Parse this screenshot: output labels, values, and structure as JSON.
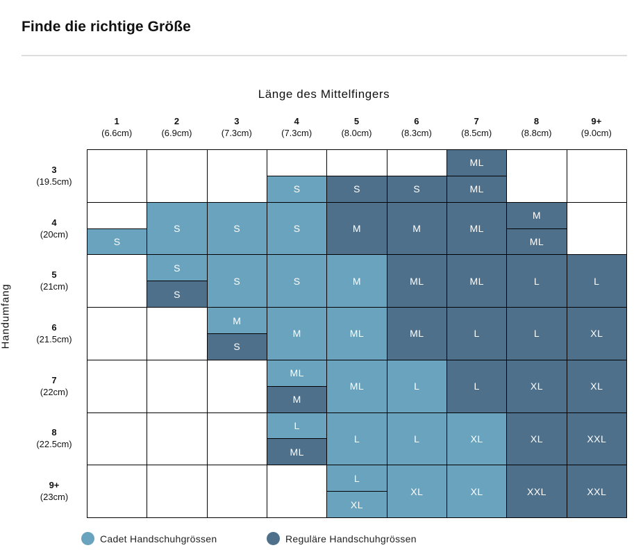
{
  "title": "Finde die richtige Größe",
  "chart_data": {
    "type": "table",
    "xlabel": "Länge des Mittelfingers",
    "ylabel": "Handumfang",
    "columns": [
      {
        "label": "1",
        "sub": "(6.6cm)"
      },
      {
        "label": "2",
        "sub": "(6.9cm)"
      },
      {
        "label": "3",
        "sub": "(7.3cm)"
      },
      {
        "label": "4",
        "sub": "(7.3cm)"
      },
      {
        "label": "5",
        "sub": "(8.0cm)"
      },
      {
        "label": "6",
        "sub": "(8.3cm)"
      },
      {
        "label": "7",
        "sub": "(8.5cm)"
      },
      {
        "label": "8",
        "sub": "(8.8cm)"
      },
      {
        "label": "9+",
        "sub": "(9.0cm)"
      }
    ],
    "rows": [
      {
        "label": "3",
        "sub": "(19.5cm)"
      },
      {
        "label": "4",
        "sub": "(20cm)"
      },
      {
        "label": "5",
        "sub": "(21cm)"
      },
      {
        "label": "6",
        "sub": "(21.5cm)"
      },
      {
        "label": "7",
        "sub": "(22cm)"
      },
      {
        "label": "8",
        "sub": "(22.5cm)"
      },
      {
        "label": "9+",
        "sub": "(23cm)"
      }
    ],
    "colors": {
      "cadet": "#6aa3bd",
      "regular": "#4e708b",
      "border": "#000000"
    },
    "legend": [
      {
        "label": "Cadet Handschuhgrössen",
        "type": "cadet"
      },
      {
        "label": "Reguläre Handschuhgrössen",
        "type": "regular"
      }
    ],
    "cells": [
      {
        "row": 0,
        "col": 3,
        "entries": [
          {
            "size": "",
            "type": "none"
          },
          {
            "size": "S",
            "type": "cadet"
          }
        ]
      },
      {
        "row": 0,
        "col": 4,
        "entries": [
          {
            "size": "",
            "type": "none"
          },
          {
            "size": "S",
            "type": "regular"
          }
        ]
      },
      {
        "row": 0,
        "col": 5,
        "entries": [
          {
            "size": "",
            "type": "none"
          },
          {
            "size": "S",
            "type": "regular"
          }
        ]
      },
      {
        "row": 0,
        "col": 6,
        "entries": [
          {
            "size": "ML",
            "type": "regular"
          },
          {
            "size": "ML",
            "type": "regular"
          }
        ]
      },
      {
        "row": 1,
        "col": 0,
        "entries": [
          {
            "size": "",
            "type": "none"
          },
          {
            "size": "S",
            "type": "cadet"
          }
        ]
      },
      {
        "row": 1,
        "col": 1,
        "entries": [
          {
            "size": "S",
            "type": "cadet"
          }
        ]
      },
      {
        "row": 1,
        "col": 2,
        "entries": [
          {
            "size": "S",
            "type": "cadet"
          }
        ]
      },
      {
        "row": 1,
        "col": 3,
        "entries": [
          {
            "size": "S",
            "type": "cadet"
          }
        ]
      },
      {
        "row": 1,
        "col": 4,
        "entries": [
          {
            "size": "M",
            "type": "regular"
          }
        ]
      },
      {
        "row": 1,
        "col": 5,
        "entries": [
          {
            "size": "M",
            "type": "regular"
          }
        ]
      },
      {
        "row": 1,
        "col": 6,
        "entries": [
          {
            "size": "ML",
            "type": "regular"
          }
        ]
      },
      {
        "row": 1,
        "col": 7,
        "entries": [
          {
            "size": "M",
            "type": "regular"
          },
          {
            "size": "ML",
            "type": "regular"
          }
        ]
      },
      {
        "row": 2,
        "col": 1,
        "entries": [
          {
            "size": "S",
            "type": "cadet"
          },
          {
            "size": "S",
            "type": "regular"
          }
        ]
      },
      {
        "row": 2,
        "col": 2,
        "entries": [
          {
            "size": "S",
            "type": "cadet"
          }
        ]
      },
      {
        "row": 2,
        "col": 3,
        "entries": [
          {
            "size": "S",
            "type": "cadet"
          }
        ]
      },
      {
        "row": 2,
        "col": 4,
        "entries": [
          {
            "size": "M",
            "type": "cadet"
          }
        ]
      },
      {
        "row": 2,
        "col": 5,
        "entries": [
          {
            "size": "ML",
            "type": "regular"
          }
        ]
      },
      {
        "row": 2,
        "col": 6,
        "entries": [
          {
            "size": "ML",
            "type": "regular"
          }
        ]
      },
      {
        "row": 2,
        "col": 7,
        "entries": [
          {
            "size": "L",
            "type": "regular"
          }
        ]
      },
      {
        "row": 2,
        "col": 8,
        "entries": [
          {
            "size": "L",
            "type": "regular"
          }
        ]
      },
      {
        "row": 3,
        "col": 2,
        "entries": [
          {
            "size": "M",
            "type": "cadet"
          },
          {
            "size": "S",
            "type": "regular"
          }
        ]
      },
      {
        "row": 3,
        "col": 3,
        "entries": [
          {
            "size": "M",
            "type": "cadet"
          }
        ]
      },
      {
        "row": 3,
        "col": 4,
        "entries": [
          {
            "size": "ML",
            "type": "cadet"
          }
        ]
      },
      {
        "row": 3,
        "col": 5,
        "entries": [
          {
            "size": "ML",
            "type": "regular"
          }
        ]
      },
      {
        "row": 3,
        "col": 6,
        "entries": [
          {
            "size": "L",
            "type": "regular"
          }
        ]
      },
      {
        "row": 3,
        "col": 7,
        "entries": [
          {
            "size": "L",
            "type": "regular"
          }
        ]
      },
      {
        "row": 3,
        "col": 8,
        "entries": [
          {
            "size": "XL",
            "type": "regular"
          }
        ]
      },
      {
        "row": 4,
        "col": 3,
        "entries": [
          {
            "size": "ML",
            "type": "cadet"
          },
          {
            "size": "M",
            "type": "regular"
          }
        ]
      },
      {
        "row": 4,
        "col": 4,
        "entries": [
          {
            "size": "ML",
            "type": "cadet"
          }
        ]
      },
      {
        "row": 4,
        "col": 5,
        "entries": [
          {
            "size": "L",
            "type": "cadet"
          }
        ]
      },
      {
        "row": 4,
        "col": 6,
        "entries": [
          {
            "size": "L",
            "type": "regular"
          }
        ]
      },
      {
        "row": 4,
        "col": 7,
        "entries": [
          {
            "size": "XL",
            "type": "regular"
          }
        ]
      },
      {
        "row": 4,
        "col": 8,
        "entries": [
          {
            "size": "XL",
            "type": "regular"
          }
        ]
      },
      {
        "row": 5,
        "col": 3,
        "entries": [
          {
            "size": "L",
            "type": "cadet"
          },
          {
            "size": "ML",
            "type": "regular"
          }
        ]
      },
      {
        "row": 5,
        "col": 4,
        "entries": [
          {
            "size": "L",
            "type": "cadet"
          }
        ]
      },
      {
        "row": 5,
        "col": 5,
        "entries": [
          {
            "size": "L",
            "type": "cadet"
          }
        ]
      },
      {
        "row": 5,
        "col": 6,
        "entries": [
          {
            "size": "XL",
            "type": "cadet"
          }
        ]
      },
      {
        "row": 5,
        "col": 7,
        "entries": [
          {
            "size": "XL",
            "type": "regular"
          }
        ]
      },
      {
        "row": 5,
        "col": 8,
        "entries": [
          {
            "size": "XXL",
            "type": "regular"
          }
        ]
      },
      {
        "row": 6,
        "col": 4,
        "entries": [
          {
            "size": "L",
            "type": "cadet"
          },
          {
            "size": "XL",
            "type": "cadet"
          }
        ]
      },
      {
        "row": 6,
        "col": 5,
        "entries": [
          {
            "size": "XL",
            "type": "cadet"
          }
        ]
      },
      {
        "row": 6,
        "col": 6,
        "entries": [
          {
            "size": "XL",
            "type": "cadet"
          }
        ]
      },
      {
        "row": 6,
        "col": 7,
        "entries": [
          {
            "size": "XXL",
            "type": "regular"
          }
        ]
      },
      {
        "row": 6,
        "col": 8,
        "entries": [
          {
            "size": "XXL",
            "type": "regular"
          }
        ]
      }
    ],
    "merged_blocks": [
      {
        "rows": [
          1,
          2
        ],
        "col": 1,
        "entries": [
          {
            "size": "S",
            "type": "cadet"
          }
        ]
      },
      {
        "rows": [
          1,
          3
        ],
        "col": 2,
        "entries": [
          {
            "size": "S",
            "type": "cadet"
          }
        ]
      },
      {
        "rows": [
          1,
          3
        ],
        "col": 3,
        "entries": [
          {
            "size": "S",
            "type": "cadet"
          }
        ]
      },
      {
        "rows": [
          3,
          4
        ],
        "col": 3,
        "entries": [
          {
            "size": "M",
            "type": "cadet"
          }
        ]
      },
      {
        "rows": [
          4,
          5
        ],
        "col": 4,
        "entries": [
          {
            "size": "ML",
            "type": "cadet"
          }
        ]
      },
      {
        "rows": [
          5,
          6
        ],
        "col": 4,
        "entries": [
          {
            "size": "L",
            "type": "cadet"
          }
        ]
      }
    ]
  }
}
